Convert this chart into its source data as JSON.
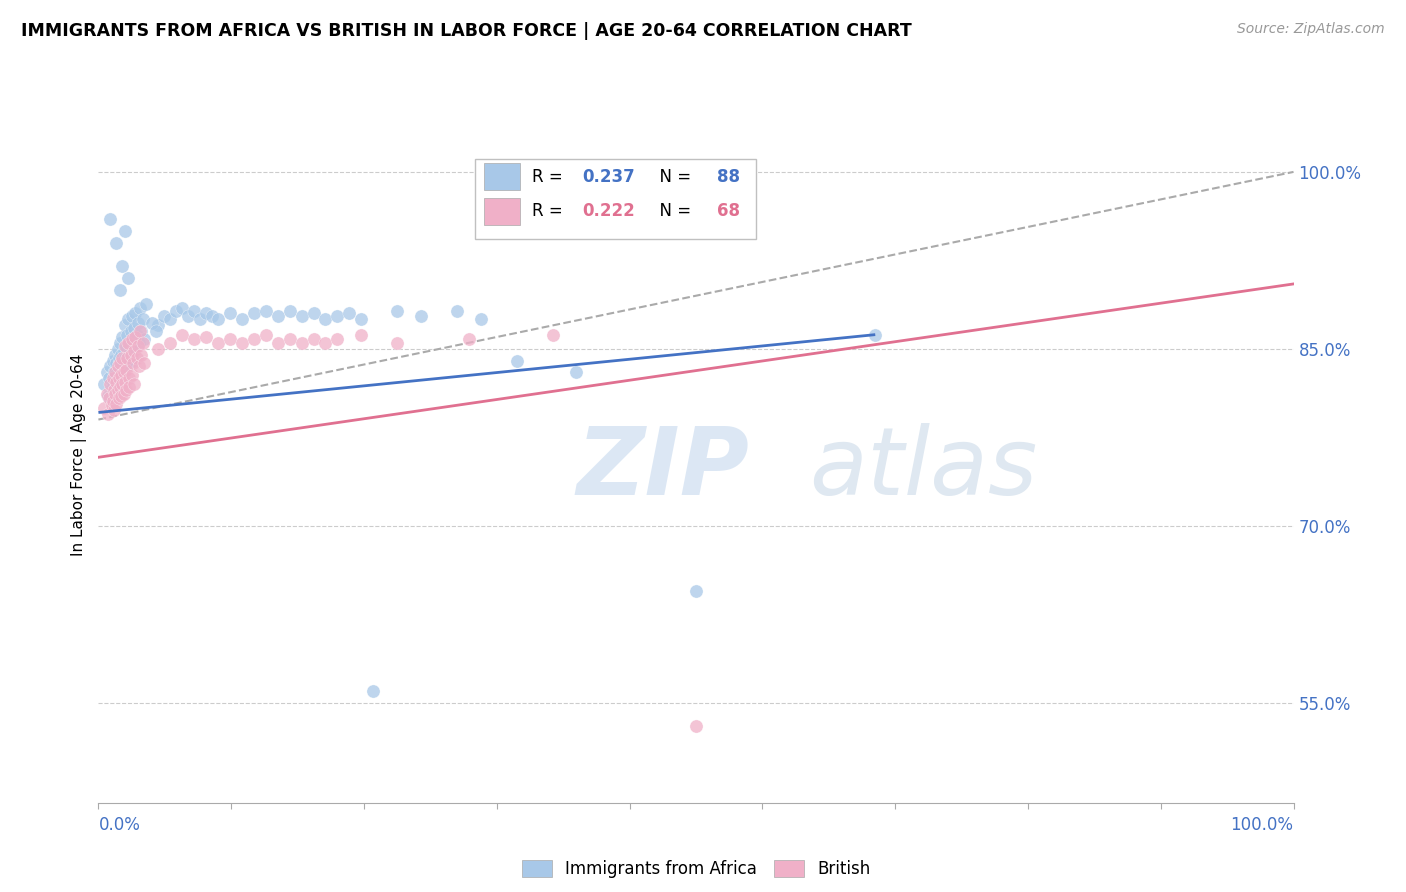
{
  "title": "IMMIGRANTS FROM AFRICA VS BRITISH IN LABOR FORCE | AGE 20-64 CORRELATION CHART",
  "source": "Source: ZipAtlas.com",
  "ylabel": "In Labor Force | Age 20-64",
  "legend_entries": [
    {
      "label": "Immigrants from Africa",
      "R": 0.237,
      "N": 88,
      "color": "#a8c8e8"
    },
    {
      "label": "British",
      "R": 0.222,
      "N": 68,
      "color": "#f0b0c8"
    }
  ],
  "ytick_labels": [
    "55.0%",
    "70.0%",
    "85.0%",
    "100.0%"
  ],
  "ytick_values": [
    0.55,
    0.7,
    0.85,
    1.0
  ],
  "xmin": 0.0,
  "xmax": 1.0,
  "ymin": 0.465,
  "ymax": 1.055,
  "blue_line_color": "#4472c4",
  "pink_line_color": "#e07090",
  "dashed_line_color": "#aaaaaa",
  "watermark_zip": "ZIP",
  "watermark_atlas": "atlas",
  "background_color": "#ffffff",
  "grid_color": "#cccccc",
  "blue_line_x0": 0.0,
  "blue_line_y0": 0.796,
  "blue_line_x1": 0.65,
  "blue_line_y1": 0.862,
  "pink_line_x0": 0.0,
  "pink_line_y0": 0.758,
  "pink_line_x1": 1.0,
  "pink_line_y1": 0.905,
  "dash_line_x0": 0.0,
  "dash_line_y0": 0.79,
  "dash_line_x1": 1.0,
  "dash_line_y1": 1.0
}
